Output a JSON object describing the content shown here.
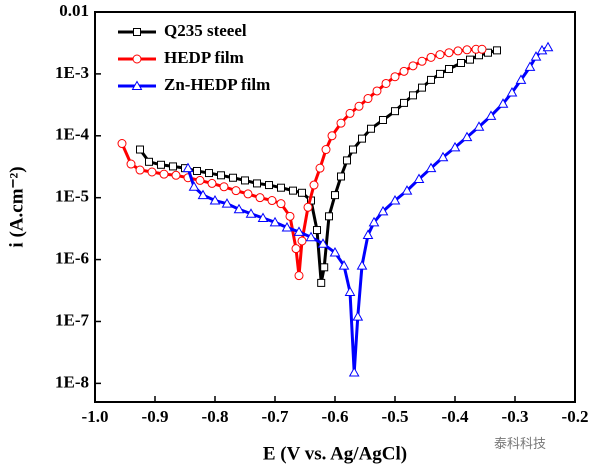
{
  "chart_data": {
    "type": "line",
    "log_y": true,
    "x_label": "E (V vs. Ag/AgCl)",
    "y_label": "i (A.cm⁻²)",
    "watermark": "泰科科技",
    "xlim": [
      -1.0,
      -0.2
    ],
    "xticks": [
      {
        "value": -1.0,
        "label": "-1.0"
      },
      -0.9,
      -0.8,
      -0.7,
      -0.6,
      -0.5,
      -0.4,
      -0.3,
      -0.2
    ],
    "ylim": [
      5e-09,
      0.01
    ],
    "yticks": [
      {
        "value": 1e-08,
        "label": "1E-8"
      },
      {
        "value": 1e-07,
        "label": "1E-7"
      },
      {
        "value": 1e-06,
        "label": "1E-6"
      },
      {
        "value": 1e-05,
        "label": "1E-5"
      },
      {
        "value": 0.0001,
        "label": "1E-4"
      },
      {
        "value": 0.001,
        "label": "1E-3"
      },
      0.01
    ],
    "legend": "upper left",
    "series": [
      {
        "name": "Q235 steeel",
        "color": "#000000",
        "marker": "square",
        "x": [
          -0.925,
          -0.91,
          -0.89,
          -0.87,
          -0.85,
          -0.83,
          -0.81,
          -0.79,
          -0.77,
          -0.75,
          -0.73,
          -0.71,
          -0.69,
          -0.67,
          -0.655,
          -0.64,
          -0.63,
          -0.623,
          -0.618,
          -0.61,
          -0.6,
          -0.59,
          -0.58,
          -0.57,
          -0.555,
          -0.54,
          -0.52,
          -0.5,
          -0.485,
          -0.47,
          -0.455,
          -0.44,
          -0.425,
          -0.41,
          -0.39,
          -0.375,
          -0.36,
          -0.345,
          -0.33
        ],
        "values": [
          6e-05,
          3.8e-05,
          3.4e-05,
          3.2e-05,
          3e-05,
          2.7e-05,
          2.5e-05,
          2.3e-05,
          2.1e-05,
          1.9e-05,
          1.7e-05,
          1.6e-05,
          1.45e-05,
          1.3e-05,
          1.2e-05,
          9e-06,
          3e-06,
          4.2e-07,
          7.5e-07,
          5e-06,
          1.1e-05,
          2.2e-05,
          4e-05,
          6e-05,
          9e-05,
          0.00013,
          0.00018,
          0.00025,
          0.00034,
          0.00045,
          0.0006,
          0.0008,
          0.001,
          0.0012,
          0.0015,
          0.0017,
          0.002,
          0.0022,
          0.0024
        ]
      },
      {
        "name": "HEDP film",
        "color": "#ff0000",
        "marker": "circle",
        "x": [
          -0.955,
          -0.94,
          -0.925,
          -0.905,
          -0.885,
          -0.865,
          -0.845,
          -0.825,
          -0.805,
          -0.785,
          -0.765,
          -0.745,
          -0.725,
          -0.705,
          -0.69,
          -0.675,
          -0.665,
          -0.66,
          -0.655,
          -0.645,
          -0.635,
          -0.625,
          -0.615,
          -0.605,
          -0.59,
          -0.575,
          -0.56,
          -0.545,
          -0.53,
          -0.515,
          -0.5,
          -0.485,
          -0.47,
          -0.455,
          -0.44,
          -0.425,
          -0.41,
          -0.395,
          -0.38,
          -0.365,
          -0.355
        ],
        "values": [
          7.5e-05,
          3.5e-05,
          2.8e-05,
          2.6e-05,
          2.4e-05,
          2.3e-05,
          2.1e-05,
          1.9e-05,
          1.7e-05,
          1.5e-05,
          1.3e-05,
          1.15e-05,
          1e-05,
          9e-06,
          8e-06,
          5e-06,
          1.5e-06,
          5.5e-07,
          2e-06,
          7e-06,
          1.6e-05,
          3e-05,
          6e-05,
          0.0001,
          0.00016,
          0.00023,
          0.0003,
          0.0004,
          0.00053,
          0.0007,
          0.0009,
          0.0011,
          0.00135,
          0.0016,
          0.00185,
          0.00205,
          0.0022,
          0.00235,
          0.00245,
          0.0025,
          0.0025
        ]
      },
      {
        "name": "Zn-HEDP film",
        "color": "#0000ff",
        "marker": "triangle",
        "x": [
          -0.845,
          -0.835,
          -0.82,
          -0.8,
          -0.78,
          -0.76,
          -0.74,
          -0.72,
          -0.7,
          -0.68,
          -0.66,
          -0.64,
          -0.62,
          -0.6,
          -0.585,
          -0.575,
          -0.568,
          -0.562,
          -0.555,
          -0.545,
          -0.535,
          -0.52,
          -0.5,
          -0.48,
          -0.46,
          -0.44,
          -0.42,
          -0.4,
          -0.38,
          -0.36,
          -0.34,
          -0.32,
          -0.305,
          -0.29,
          -0.275,
          -0.265,
          -0.255,
          -0.245
        ],
        "values": [
          3e-05,
          1.5e-05,
          1.1e-05,
          9e-06,
          8e-06,
          6.5e-06,
          5.5e-06,
          4.7e-06,
          4e-06,
          3.3e-06,
          2.8e-06,
          2.3e-06,
          1.8e-06,
          1.3e-06,
          8e-07,
          3e-07,
          1.5e-08,
          1.2e-07,
          8e-07,
          2.5e-06,
          4e-06,
          6e-06,
          9e-06,
          1.3e-05,
          2e-05,
          3e-05,
          4.5e-05,
          6.5e-05,
          9.5e-05,
          0.00014,
          0.00021,
          0.00033,
          0.0005,
          0.0008,
          0.0013,
          0.0019,
          0.0024,
          0.0027
        ]
      }
    ]
  }
}
